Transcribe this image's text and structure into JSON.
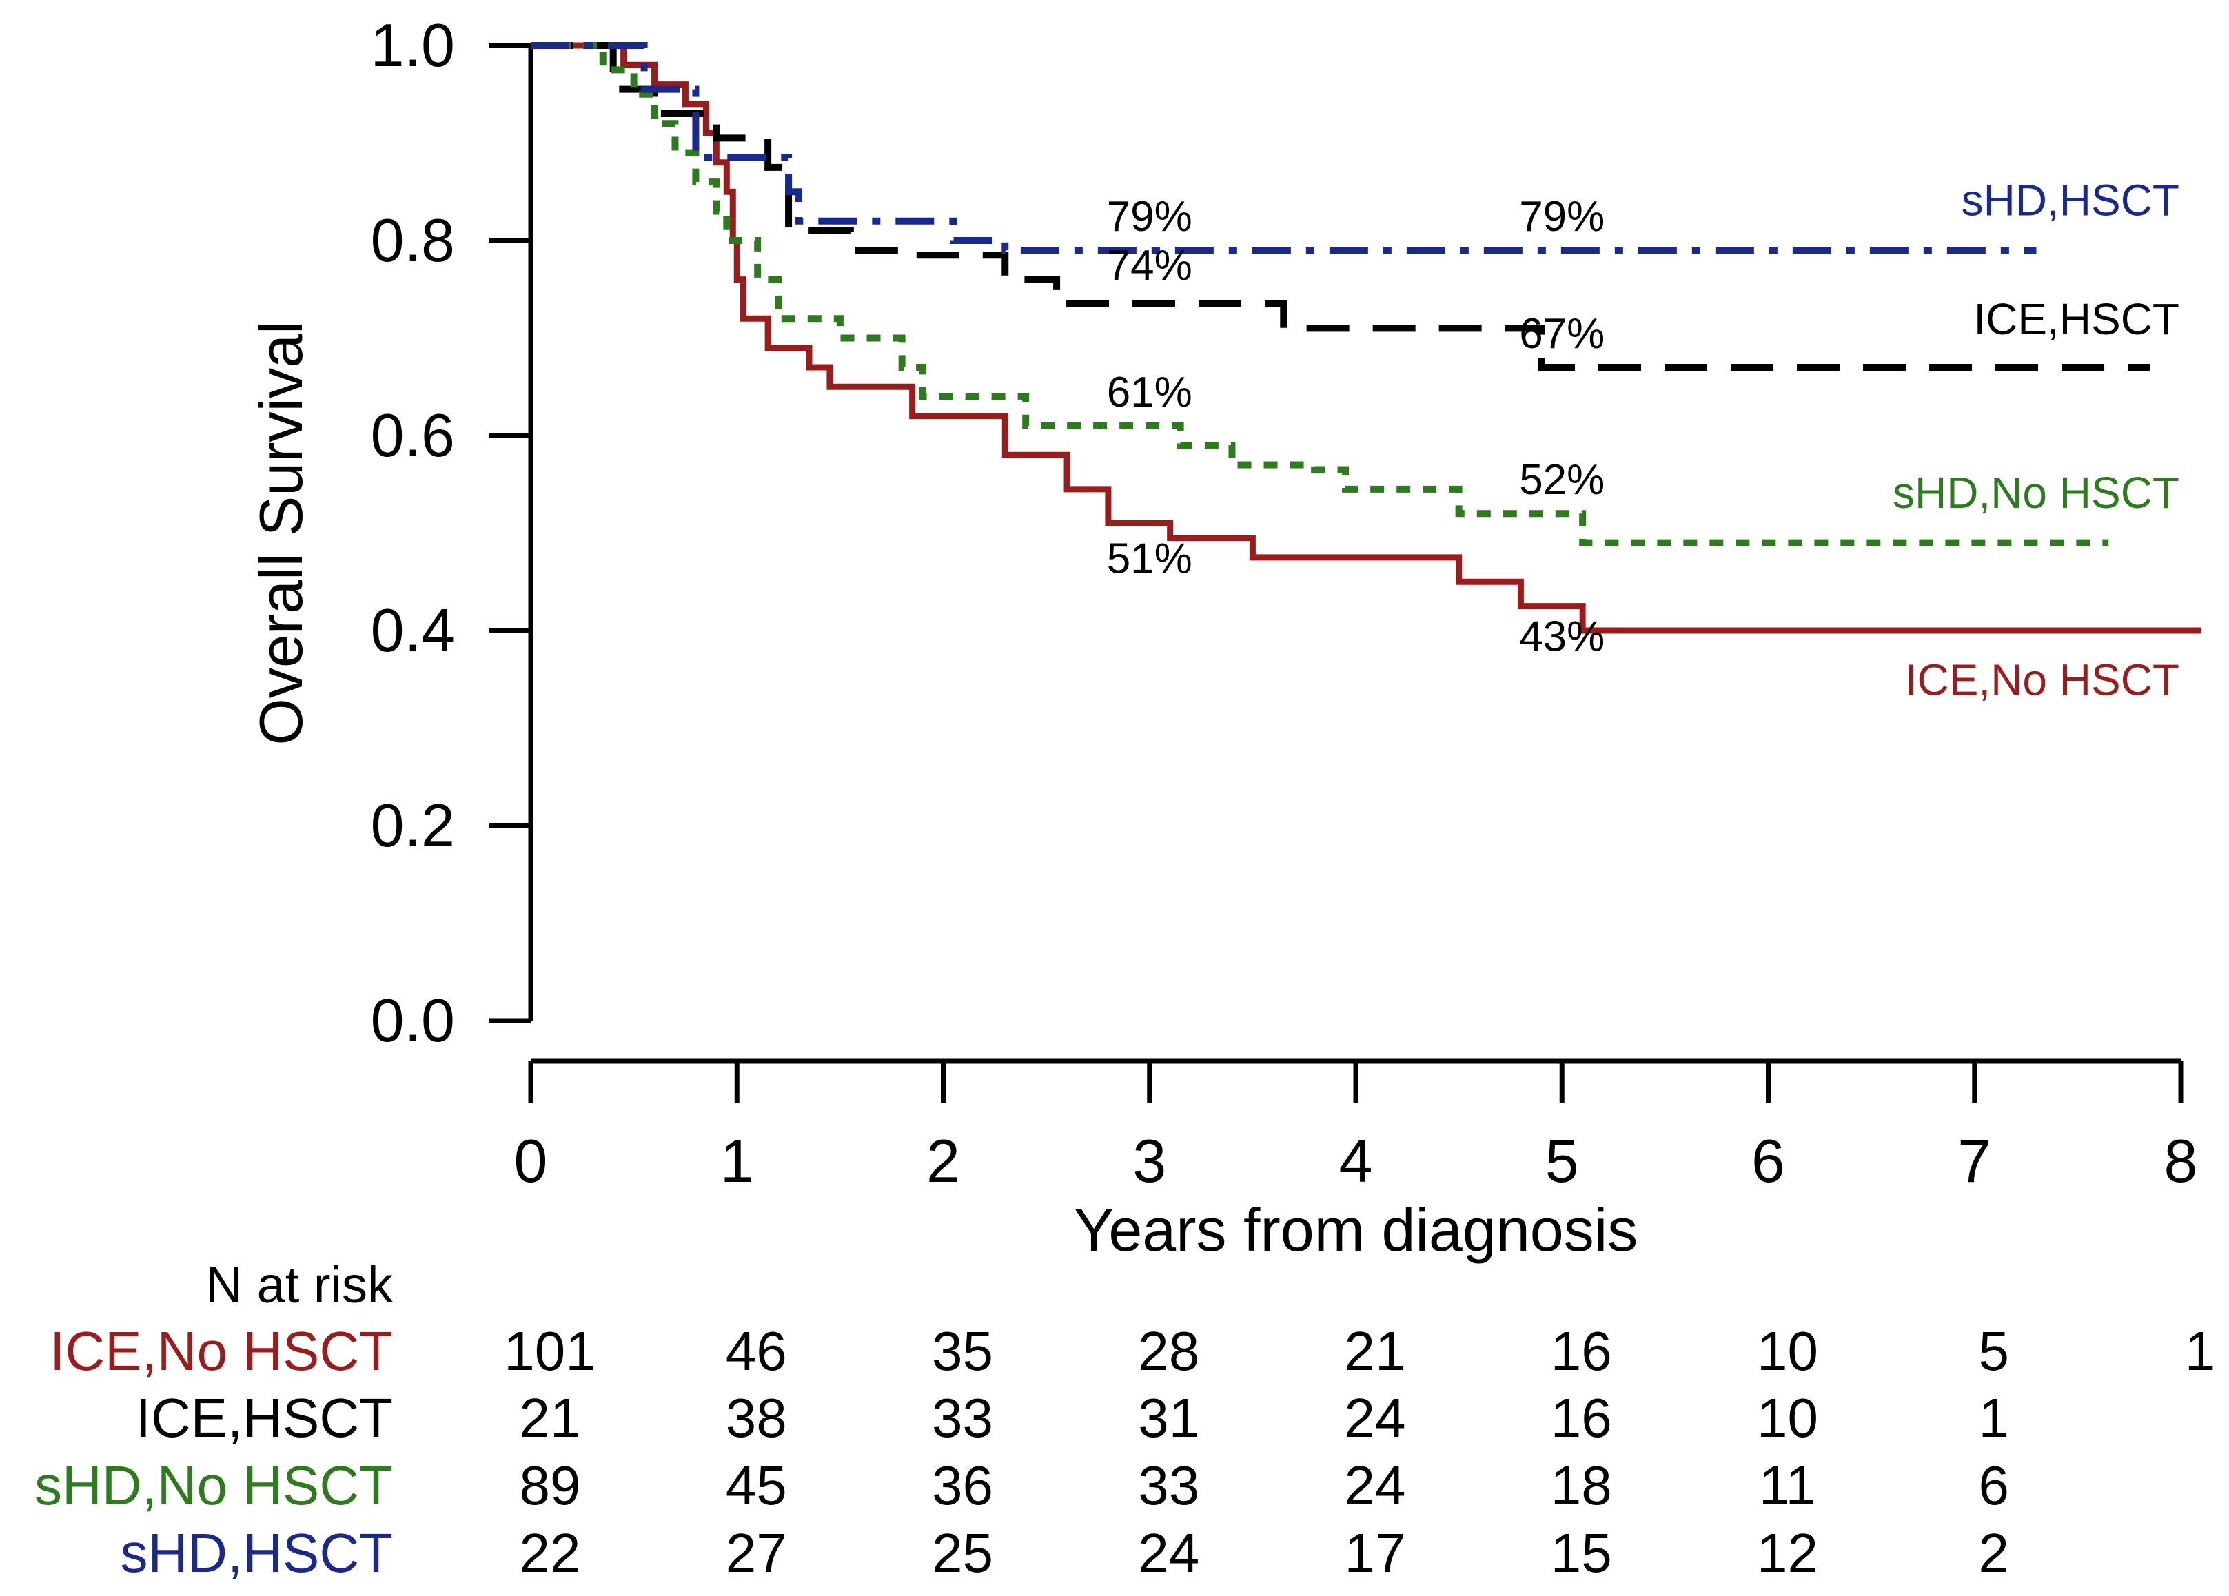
{
  "chart_data": {
    "type": "line",
    "subtype": "kaplan-meier-step",
    "xlabel": "Years from diagnosis",
    "ylabel": "Overall Survival",
    "xlim": [
      0,
      8
    ],
    "ylim": [
      0,
      1
    ],
    "x_ticks": [
      0,
      1,
      2,
      3,
      4,
      5,
      6,
      7,
      8
    ],
    "y_ticks": [
      0.0,
      0.2,
      0.4,
      0.6,
      0.8,
      1.0
    ],
    "x_tick_labels": [
      "0",
      "1",
      "2",
      "3",
      "4",
      "5",
      "6",
      "7",
      "8"
    ],
    "y_tick_labels": [
      "0.0",
      "0.2",
      "0.4",
      "0.6",
      "0.8",
      "1.0"
    ],
    "grid": false,
    "legend": "inline labels at right end of curves",
    "series": [
      {
        "name": "ICE,No HSCT",
        "color": "#9b1c1c",
        "dash": "solid",
        "label_y": 0.348,
        "annotations": [
          {
            "x": 3,
            "y": 0.51,
            "text": "51%",
            "placement": "below"
          },
          {
            "x": 5,
            "y": 0.43,
            "text": "43%",
            "placement": "below"
          }
        ],
        "steps": [
          [
            0,
            1.0
          ],
          [
            0.45,
            0.98
          ],
          [
            0.6,
            0.96
          ],
          [
            0.75,
            0.94
          ],
          [
            0.85,
            0.91
          ],
          [
            0.9,
            0.88
          ],
          [
            0.95,
            0.85
          ],
          [
            0.98,
            0.8
          ],
          [
            1.0,
            0.76
          ],
          [
            1.03,
            0.72
          ],
          [
            1.15,
            0.69
          ],
          [
            1.35,
            0.67
          ],
          [
            1.45,
            0.65
          ],
          [
            1.85,
            0.62
          ],
          [
            2.3,
            0.58
          ],
          [
            2.6,
            0.545
          ],
          [
            2.8,
            0.51
          ],
          [
            3.1,
            0.495
          ],
          [
            3.5,
            0.475
          ],
          [
            4.5,
            0.45
          ],
          [
            4.8,
            0.425
          ],
          [
            5.1,
            0.4
          ],
          [
            8.1,
            0.4
          ]
        ]
      },
      {
        "name": "ICE,HSCT",
        "color": "#000000",
        "dash": "long-dash",
        "label_y": 0.718,
        "annotations": [
          {
            "x": 3,
            "y": 0.74,
            "text": "74%",
            "placement": "above"
          },
          {
            "x": 5,
            "y": 0.67,
            "text": "67%",
            "placement": "above"
          }
        ],
        "steps": [
          [
            0,
            1.0
          ],
          [
            0.4,
            0.955
          ],
          [
            0.6,
            0.93
          ],
          [
            0.9,
            0.905
          ],
          [
            1.15,
            0.875
          ],
          [
            1.25,
            0.81
          ],
          [
            1.55,
            0.79
          ],
          [
            1.85,
            0.785
          ],
          [
            2.3,
            0.76
          ],
          [
            2.55,
            0.735
          ],
          [
            3.65,
            0.71
          ],
          [
            4.9,
            0.67
          ],
          [
            7.85,
            0.67
          ]
        ]
      },
      {
        "name": "sHD,No HSCT",
        "color": "#2e7a1e",
        "dash": "dotted",
        "label_y": 0.54,
        "annotations": [
          {
            "x": 3,
            "y": 0.61,
            "text": "61%",
            "placement": "above"
          },
          {
            "x": 5,
            "y": 0.52,
            "text": "52%",
            "placement": "above"
          }
        ],
        "steps": [
          [
            0,
            1.0
          ],
          [
            0.35,
            0.975
          ],
          [
            0.5,
            0.95
          ],
          [
            0.6,
            0.92
          ],
          [
            0.7,
            0.89
          ],
          [
            0.8,
            0.86
          ],
          [
            0.9,
            0.83
          ],
          [
            0.95,
            0.8
          ],
          [
            1.1,
            0.76
          ],
          [
            1.2,
            0.72
          ],
          [
            1.5,
            0.7
          ],
          [
            1.8,
            0.67
          ],
          [
            1.9,
            0.64
          ],
          [
            2.4,
            0.61
          ],
          [
            3.15,
            0.59
          ],
          [
            3.4,
            0.57
          ],
          [
            3.8,
            0.565
          ],
          [
            3.95,
            0.545
          ],
          [
            4.5,
            0.52
          ],
          [
            5.1,
            0.49
          ],
          [
            7.65,
            0.49
          ]
        ]
      },
      {
        "name": "sHD,HSCT",
        "color": "#1a2a8c",
        "dash": "dash-dot",
        "label_y": 0.84,
        "annotations": [
          {
            "x": 3,
            "y": 0.79,
            "text": "79%",
            "placement": "above"
          },
          {
            "x": 5,
            "y": 0.79,
            "text": "79%",
            "placement": "above"
          }
        ],
        "steps": [
          [
            0,
            1.0
          ],
          [
            0.55,
            0.955
          ],
          [
            0.8,
            0.885
          ],
          [
            1.25,
            0.85
          ],
          [
            1.3,
            0.82
          ],
          [
            2.05,
            0.8
          ],
          [
            2.3,
            0.79
          ],
          [
            7.3,
            0.79
          ]
        ]
      }
    ],
    "risk_table": {
      "header": "N at risk",
      "times": [
        0,
        1,
        2,
        3,
        4,
        5,
        6,
        7,
        8
      ],
      "rows": [
        {
          "name": "ICE,No HSCT",
          "values": [
            "101",
            "46",
            "35",
            "28",
            "21",
            "16",
            "10",
            "5",
            "1"
          ]
        },
        {
          "name": "ICE,HSCT",
          "values": [
            "21",
            "38",
            "33",
            "31",
            "24",
            "16",
            "10",
            "1",
            ""
          ]
        },
        {
          "name": "sHD,No HSCT",
          "values": [
            "89",
            "45",
            "36",
            "33",
            "24",
            "18",
            "11",
            "6",
            ""
          ]
        },
        {
          "name": "sHD,HSCT",
          "values": [
            "22",
            "27",
            "25",
            "24",
            "17",
            "15",
            "12",
            "2",
            ""
          ]
        }
      ]
    }
  }
}
